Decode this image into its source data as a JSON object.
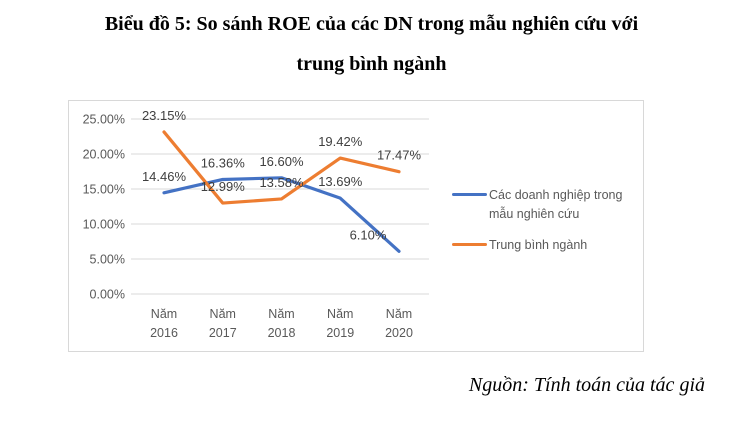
{
  "title": {
    "line1": "Biểu đồ 5: So sánh ROE của các DN trong mẫu nghiên cứu với",
    "line2": "trung bình ngành"
  },
  "source": "Nguồn: Tính toán của tác giả",
  "colors": {
    "series_blue": "#4472C4",
    "series_orange": "#ED7D31",
    "grid": "#d9d9d9",
    "axis_text": "#595959",
    "data_label_text": "#3f3f3f",
    "chart_border": "#d8d8d8"
  },
  "chart_data": {
    "type": "line",
    "categories": [
      "Năm 2016",
      "Năm 2017",
      "Năm 2018",
      "Năm 2019",
      "Năm 2020"
    ],
    "series": [
      {
        "name": "Các doanh nghiệp trong mẫu nghiên cứu",
        "color": "#4472C4",
        "values": [
          14.46,
          16.36,
          16.6,
          13.69,
          6.1
        ],
        "labels": [
          "14.46%",
          "16.36%",
          "16.60%",
          "13.69%",
          "6.10%"
        ]
      },
      {
        "name": "Trung bình ngành",
        "color": "#ED7D31",
        "values": [
          23.15,
          12.99,
          13.58,
          19.42,
          17.47
        ],
        "labels": [
          "23.15%",
          "12.99%",
          "13.58%",
          "19.42%",
          "17.47%"
        ]
      }
    ],
    "y_axis": {
      "min": 0,
      "max": 25,
      "step": 5,
      "tick_labels": [
        "0.00%",
        "5.00%",
        "10.00%",
        "15.00%",
        "20.00%",
        "25.00%"
      ]
    },
    "grid": true,
    "legend_position": "right",
    "data_labels_visible": true
  }
}
